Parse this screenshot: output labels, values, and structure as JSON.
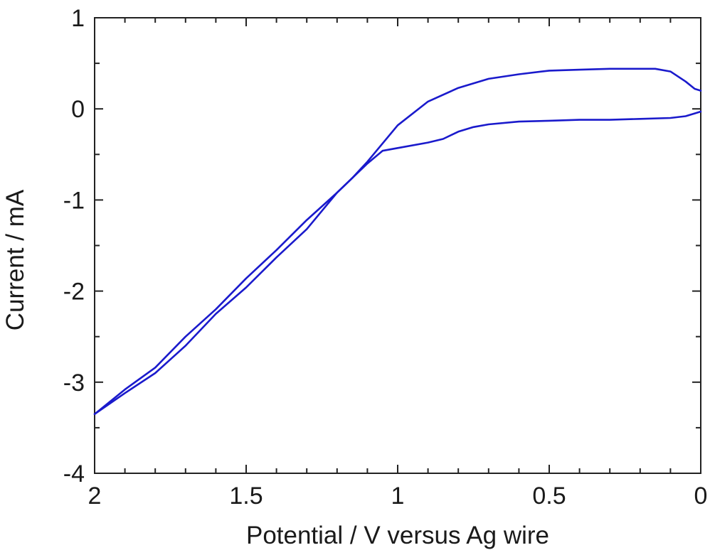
{
  "chart_data": {
    "type": "line",
    "title": "",
    "xlabel": "Potential / V versus Ag wire",
    "ylabel": "Current / mA",
    "xlim": [
      2,
      0
    ],
    "ylim": [
      -4,
      1
    ],
    "x_reversed": true,
    "xticks": [
      2,
      1.5,
      1,
      0.5,
      0
    ],
    "xtick_labels": [
      "2",
      "1.5",
      "1",
      "0.5",
      "0"
    ],
    "yticks": [
      1,
      0,
      -1,
      -2,
      -3,
      -4
    ],
    "ytick_labels": [
      "1",
      "0",
      "-1",
      "-2",
      "-3",
      "-4"
    ],
    "x_minor_step": 0.1,
    "y_minor_step": 0.5,
    "grid": false,
    "legend": "none",
    "line_color": "#1a1acc",
    "series": [
      {
        "x": [
          0.0,
          0.02,
          0.05,
          0.1,
          0.15,
          0.2,
          0.3,
          0.4,
          0.5,
          0.6,
          0.7,
          0.8,
          0.9,
          1.0,
          1.05,
          1.1,
          1.15,
          1.2,
          1.3,
          1.4,
          1.5,
          1.6,
          1.7,
          1.8,
          1.9,
          2.0
        ],
        "y": [
          0.2,
          0.22,
          0.3,
          0.41,
          0.44,
          0.44,
          0.44,
          0.43,
          0.42,
          0.38,
          0.33,
          0.23,
          0.08,
          -0.18,
          -0.38,
          -0.58,
          -0.76,
          -0.92,
          -1.22,
          -1.55,
          -1.86,
          -2.2,
          -2.5,
          -2.84,
          -3.08,
          -3.35
        ]
      },
      {
        "x": [
          2.0,
          1.9,
          1.8,
          1.7,
          1.6,
          1.5,
          1.4,
          1.3,
          1.2,
          1.15,
          1.1,
          1.05,
          1.0,
          0.9,
          0.85,
          0.8,
          0.75,
          0.7,
          0.6,
          0.5,
          0.4,
          0.3,
          0.2,
          0.1,
          0.05,
          0.02,
          0.0
        ],
        "y": [
          -3.35,
          -3.12,
          -2.9,
          -2.6,
          -2.25,
          -1.96,
          -1.63,
          -1.32,
          -0.92,
          -0.76,
          -0.6,
          -0.46,
          -0.43,
          -0.37,
          -0.33,
          -0.25,
          -0.2,
          -0.17,
          -0.14,
          -0.13,
          -0.12,
          -0.12,
          -0.11,
          -0.1,
          -0.08,
          -0.05,
          -0.03
        ]
      }
    ]
  }
}
